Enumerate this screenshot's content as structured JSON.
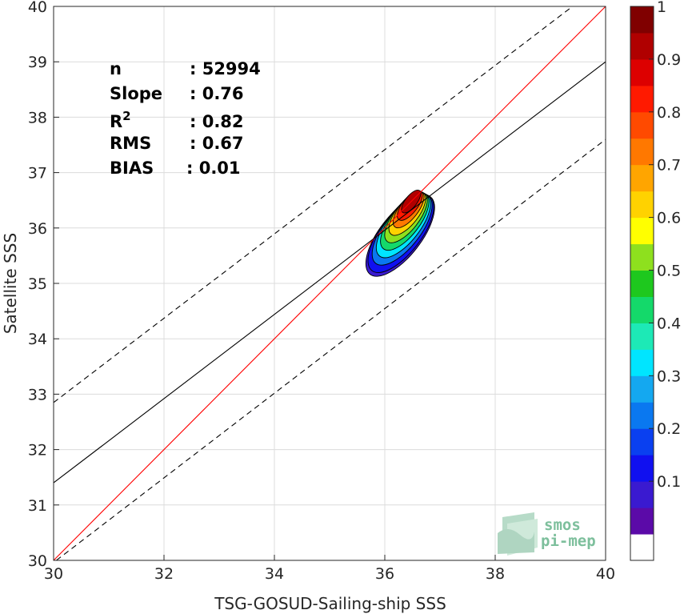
{
  "chart_data": {
    "type": "contour-density-scatter",
    "xlabel": "TSG-GOSUD-Sailing-ship SSS",
    "ylabel": "Satellite SSS",
    "xlim": [
      30,
      40
    ],
    "ylim": [
      30,
      40
    ],
    "xticks": [
      "30",
      "32",
      "34",
      "36",
      "38",
      "40"
    ],
    "yticks": [
      "30",
      "31",
      "32",
      "33",
      "34",
      "35",
      "36",
      "37",
      "38",
      "39",
      "40"
    ],
    "grid": true,
    "stats": [
      {
        "label": "n",
        "value": ": 52994"
      },
      {
        "label": "Slope",
        "value": ": 0.76"
      },
      {
        "label": "R",
        "sup": "2",
        "value": ": 0.82"
      },
      {
        "label": "RMS",
        "value": ": 0.67"
      },
      {
        "label": "BIAS",
        "value": ": 0.01"
      }
    ],
    "lines": [
      {
        "name": "one-to-one",
        "color": "#ff0000",
        "style": "solid",
        "x": [
          30,
          40
        ],
        "y": [
          30,
          40
        ]
      },
      {
        "name": "regression",
        "color": "#000000",
        "style": "solid",
        "x": [
          30,
          40
        ],
        "y": [
          31.4,
          39.0
        ]
      },
      {
        "name": "upper-bound",
        "color": "#000000",
        "style": "dashed",
        "x": [
          30,
          39.4
        ],
        "y": [
          32.85,
          40
        ]
      },
      {
        "name": "lower-bound",
        "color": "#000000",
        "style": "dashed",
        "x": [
          30.05,
          40
        ],
        "y": [
          30,
          37.6
        ]
      }
    ],
    "density_peak": {
      "x": 36.5,
      "y": 36.55
    },
    "density_levels": [
      0.05,
      0.1,
      0.2,
      0.3,
      0.4,
      0.5,
      0.6,
      0.7,
      0.8,
      0.9
    ],
    "colorbar": {
      "ticks": [
        "0.1",
        "0.2",
        "0.3",
        "0.4",
        "0.5",
        "0.6",
        "0.7",
        "0.8",
        "0.9",
        "1"
      ],
      "range": [
        0,
        1
      ],
      "colors": [
        "#ffffff",
        "#5b0aa8",
        "#3a1ad0",
        "#1010f0",
        "#0a40f0",
        "#0a78f0",
        "#14a8f0",
        "#00e5ff",
        "#1de9b6",
        "#14d96a",
        "#1ec81e",
        "#8ee01e",
        "#ffff00",
        "#ffd200",
        "#ffa500",
        "#ff7800",
        "#ff4a00",
        "#ff1a00",
        "#dd0000",
        "#b00000",
        "#800000"
      ]
    },
    "logo": {
      "line1": "smos",
      "line2": "pi-mep"
    }
  }
}
